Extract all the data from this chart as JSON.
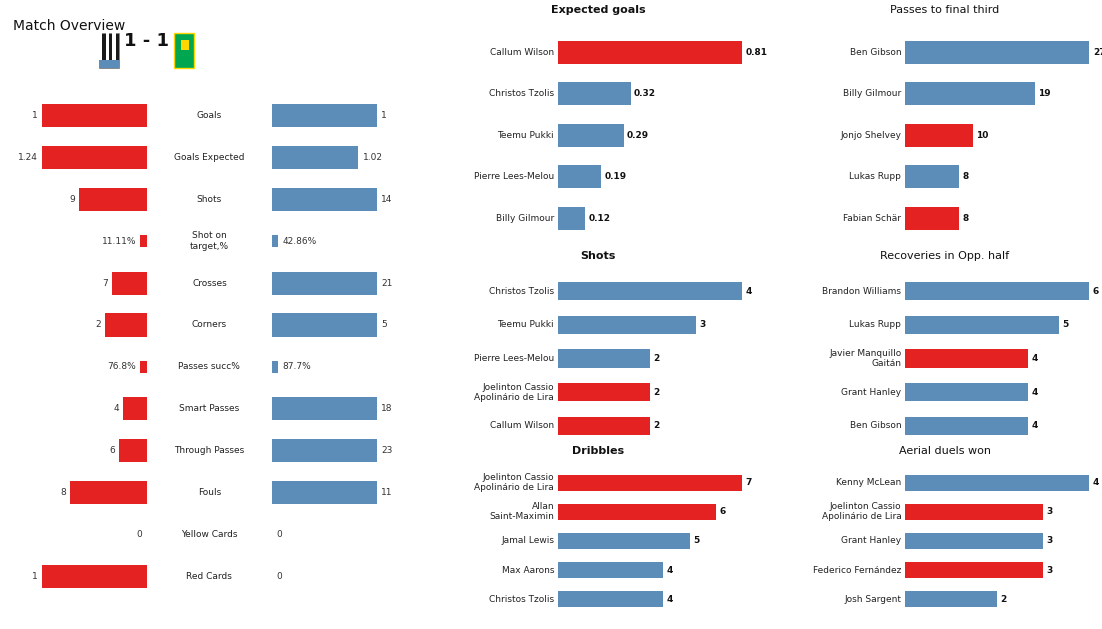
{
  "title": "Match Overview",
  "score": "1 - 1",
  "team1_color": "#E32221",
  "team2_color": "#5B8DB8",
  "overview_stats": [
    {
      "label": "Goals",
      "val1": 1,
      "val2": 1,
      "is_text": false,
      "max_bar": 1
    },
    {
      "label": "Goals Expected",
      "val1": 1.24,
      "val2": 1.02,
      "is_text": false,
      "max_bar": 1.24
    },
    {
      "label": "Shots",
      "val1": 9,
      "val2": 14,
      "is_text": false,
      "max_bar": 14
    },
    {
      "label": "Shot on\ntarget,%",
      "val1": "11.11%",
      "val2": "42.86%",
      "is_text": true,
      "max_bar": 0
    },
    {
      "label": "Crosses",
      "val1": 7,
      "val2": 21,
      "is_text": false,
      "max_bar": 21
    },
    {
      "label": "Corners",
      "val1": 2,
      "val2": 5,
      "is_text": false,
      "max_bar": 5
    },
    {
      "label": "Passes succ%",
      "val1": "76.8%",
      "val2": "87.7%",
      "is_text": true,
      "max_bar": 0
    },
    {
      "label": "Smart Passes",
      "val1": 4,
      "val2": 18,
      "is_text": false,
      "max_bar": 18
    },
    {
      "label": "Through Passes",
      "val1": 6,
      "val2": 23,
      "is_text": false,
      "max_bar": 23
    },
    {
      "label": "Fouls",
      "val1": 8,
      "val2": 11,
      "is_text": false,
      "max_bar": 11
    },
    {
      "label": "Yellow Cards",
      "val1": 0,
      "val2": 0,
      "is_text": false,
      "max_bar": 1
    },
    {
      "label": "Red Cards",
      "val1": 1,
      "val2": 0,
      "is_text": false,
      "max_bar": 1
    }
  ],
  "xg_title": "Expected goals",
  "xg_players": [
    "Callum Wilson",
    "Christos Tzolis",
    "Teemu Pukki",
    "Pierre Lees-Melou",
    "Billy Gilmour"
  ],
  "xg_values": [
    0.81,
    0.32,
    0.29,
    0.19,
    0.12
  ],
  "xg_colors": [
    "#E32221",
    "#5B8DB8",
    "#5B8DB8",
    "#5B8DB8",
    "#5B8DB8"
  ],
  "shots_title": "Shots",
  "shots_players": [
    "Christos Tzolis",
    "Teemu Pukki",
    "Pierre Lees-Melou",
    "Joelinton Cassio\nApolinário de Lira",
    "Callum Wilson"
  ],
  "shots_values": [
    4,
    3,
    2,
    2,
    2
  ],
  "shots_colors": [
    "#5B8DB8",
    "#5B8DB8",
    "#5B8DB8",
    "#E32221",
    "#E32221"
  ],
  "dribbles_title": "Dribbles",
  "dribbles_players": [
    "Joelinton Cassio\nApolinário de Lira",
    "Allan\nSaint-Maximin",
    "Jamal Lewis",
    "Max Aarons",
    "Christos Tzolis"
  ],
  "dribbles_values": [
    7,
    6,
    5,
    4,
    4
  ],
  "dribbles_colors": [
    "#E32221",
    "#E32221",
    "#5B8DB8",
    "#5B8DB8",
    "#5B8DB8"
  ],
  "passes_final_title": "Passes to final third",
  "passes_final_players": [
    "Ben Gibson",
    "Billy Gilmour",
    "Jonjo Shelvey",
    "Lukas Rupp",
    "Fabian Schär"
  ],
  "passes_final_values": [
    27,
    19,
    10,
    8,
    8
  ],
  "passes_final_colors": [
    "#5B8DB8",
    "#5B8DB8",
    "#E32221",
    "#5B8DB8",
    "#E32221"
  ],
  "recoveries_title": "Recoveries in Opp. half",
  "recoveries_players": [
    "Brandon Williams",
    "Lukas Rupp",
    "Javier Manquillo\nGaitán",
    "Grant Hanley",
    "Ben Gibson"
  ],
  "recoveries_values": [
    6,
    5,
    4,
    4,
    4
  ],
  "recoveries_colors": [
    "#5B8DB8",
    "#5B8DB8",
    "#E32221",
    "#5B8DB8",
    "#5B8DB8"
  ],
  "aerial_title": "Aerial duels won",
  "aerial_players": [
    "Kenny McLean",
    "Joelinton Cassio\nApolinário de Lira",
    "Grant Hanley",
    "Federico Fernández",
    "Josh Sargent"
  ],
  "aerial_values": [
    4,
    3,
    3,
    3,
    2
  ],
  "aerial_colors": [
    "#5B8DB8",
    "#E32221",
    "#5B8DB8",
    "#E32221",
    "#5B8DB8"
  ]
}
